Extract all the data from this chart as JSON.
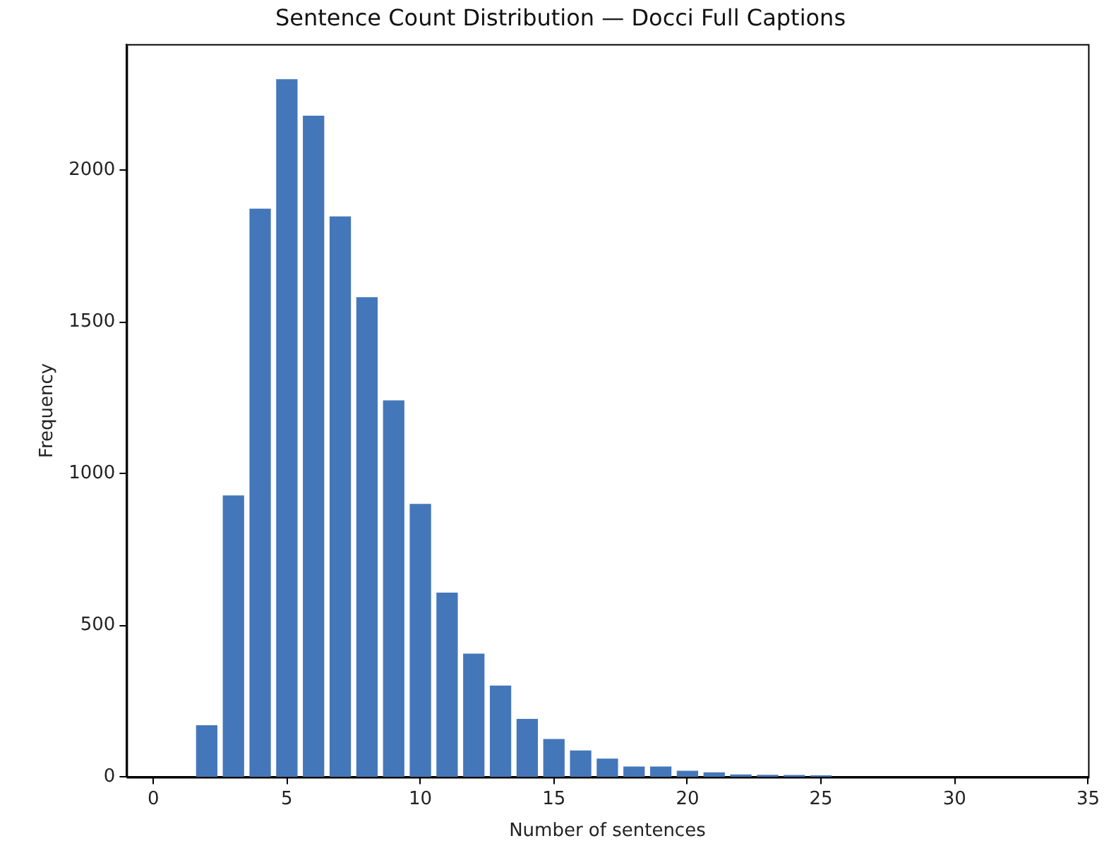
{
  "chart_data": {
    "type": "histogram",
    "title": "Sentence Count Distribution — Docci Full Captions",
    "xlabel": "Number of sentences",
    "ylabel": "Frequency",
    "bins": [
      1.5,
      2.5,
      3.5,
      4.5,
      5.5,
      6.5,
      7.5,
      8.5,
      9.5,
      10.5,
      11.5,
      12.5,
      13.5,
      14.5,
      15.5,
      16.5,
      17.5,
      18.5,
      19.5,
      20.5,
      21.5,
      22.5,
      23.5,
      24.5,
      25.5
    ],
    "values": [
      171,
      928,
      1873,
      2299,
      2179,
      1847,
      1581,
      1241,
      900,
      608,
      407,
      302,
      192,
      126,
      88,
      61,
      35,
      35,
      21,
      16,
      9,
      8,
      7,
      6
    ],
    "color": "#4477b9",
    "xlim": [
      -1,
      35
    ],
    "xticks": [
      0,
      5,
      10,
      15,
      20,
      25,
      30,
      35
    ],
    "ylim": [
      0,
      2415
    ],
    "yticks": [
      0,
      500,
      1000,
      1500,
      2000
    ],
    "grid": false,
    "legend": false
  }
}
